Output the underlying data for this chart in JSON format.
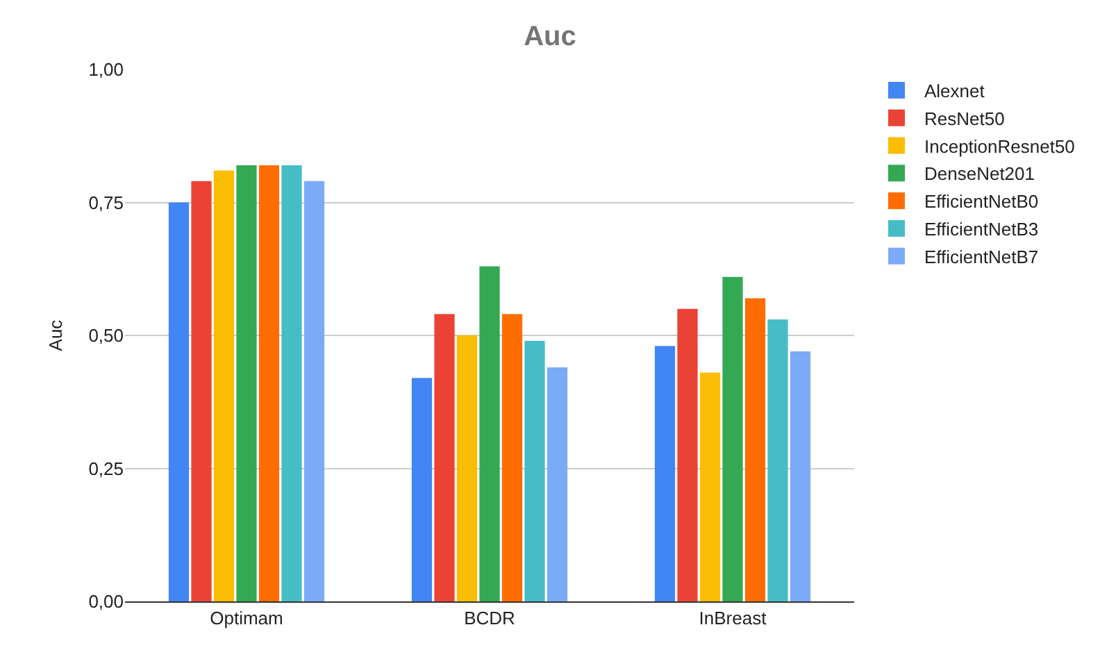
{
  "chart_data": {
    "type": "bar",
    "title": "Auc",
    "ylabel": "Auc",
    "categories": [
      "Optimam",
      "BCDR",
      "InBreast"
    ],
    "series": [
      {
        "name": "Alexnet",
        "color": "#4285f4",
        "values": [
          0.75,
          0.42,
          0.48
        ]
      },
      {
        "name": "ResNet50",
        "color": "#ea4335",
        "values": [
          0.79,
          0.54,
          0.55
        ]
      },
      {
        "name": "InceptionResnet50",
        "color": "#fbbc04",
        "values": [
          0.81,
          0.5,
          0.43
        ]
      },
      {
        "name": "DenseNet201",
        "color": "#34a853",
        "values": [
          0.82,
          0.63,
          0.61
        ]
      },
      {
        "name": "EfficientNetB0",
        "color": "#ff6d01",
        "values": [
          0.82,
          0.54,
          0.57
        ]
      },
      {
        "name": "EfficientNetB3",
        "color": "#46bdc6",
        "values": [
          0.82,
          0.49,
          0.53
        ]
      },
      {
        "name": "EfficientNetB7",
        "color": "#7baaf7",
        "values": [
          0.79,
          0.44,
          0.47
        ]
      }
    ],
    "ylim": [
      0,
      1
    ],
    "yticks": [
      {
        "value": 0,
        "label": "0,00"
      },
      {
        "value": 0.25,
        "label": "0,25"
      },
      {
        "value": 0.5,
        "label": "0,50"
      },
      {
        "value": 0.75,
        "label": "0,75"
      },
      {
        "value": 1,
        "label": "1,00"
      }
    ],
    "grid": "y",
    "legend": "right"
  }
}
